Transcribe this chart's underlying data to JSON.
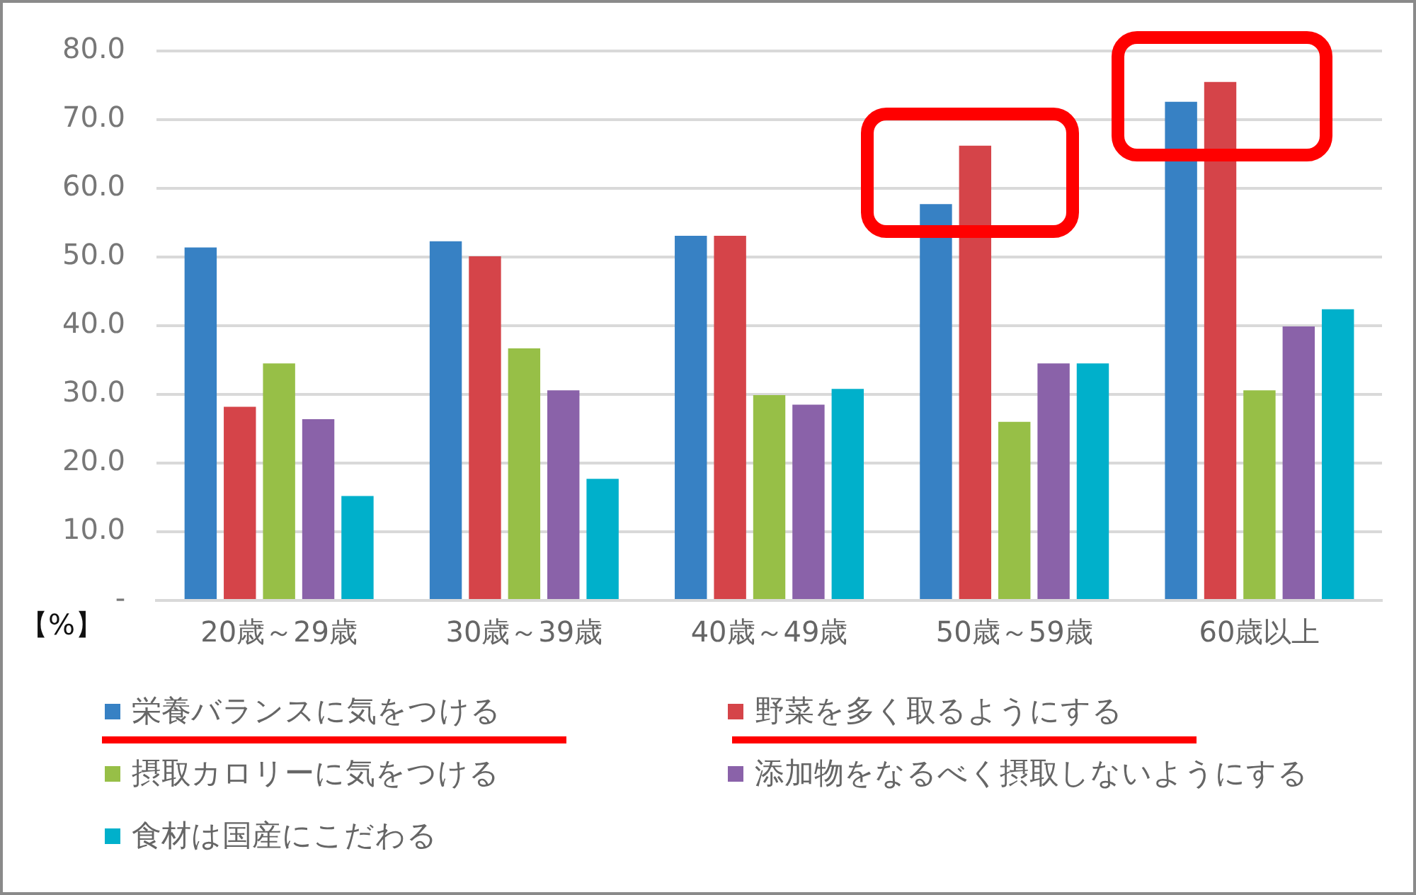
{
  "chart_data": {
    "type": "bar",
    "ylabel": "【%】",
    "categories": [
      "20歳～29歳",
      "30歳～39歳",
      "40歳～49歳",
      "50歳～59歳",
      "60歳以上"
    ],
    "series": [
      {
        "name": "栄養バランスに気をつける",
        "color": "#3781c4",
        "values": [
          51.4,
          52.3,
          53.1,
          57.7,
          72.6
        ]
      },
      {
        "name": "野菜を多く取るようにする",
        "color": "#d54449",
        "values": [
          28.2,
          50.1,
          53.1,
          66.2,
          75.5
        ]
      },
      {
        "name": "摂取カロリーに気をつける",
        "color": "#97bf47",
        "values": [
          34.5,
          36.7,
          29.9,
          26.0,
          30.6
        ]
      },
      {
        "name": "添加物をなるべく摂取しないようにする",
        "color": "#8a62a9",
        "values": [
          26.4,
          30.6,
          28.5,
          34.5,
          39.9
        ]
      },
      {
        "name": "食材は国産にこだわる",
        "color": "#00b0cb",
        "values": [
          15.2,
          17.7,
          30.8,
          34.5,
          42.4
        ]
      }
    ],
    "ylim": [
      0,
      80
    ],
    "yticks": [
      {
        "value": 0,
        "label": "-"
      },
      {
        "value": 10,
        "label": "10.0"
      },
      {
        "value": 20,
        "label": "20.0"
      },
      {
        "value": 30,
        "label": "30.0"
      },
      {
        "value": 40,
        "label": "40.0"
      },
      {
        "value": 50,
        "label": "50.0"
      },
      {
        "value": 60,
        "label": "60.0"
      },
      {
        "value": 70,
        "label": "70.0"
      },
      {
        "value": 80,
        "label": "80.0"
      }
    ],
    "grid": "y",
    "legend": "bottom"
  }
}
